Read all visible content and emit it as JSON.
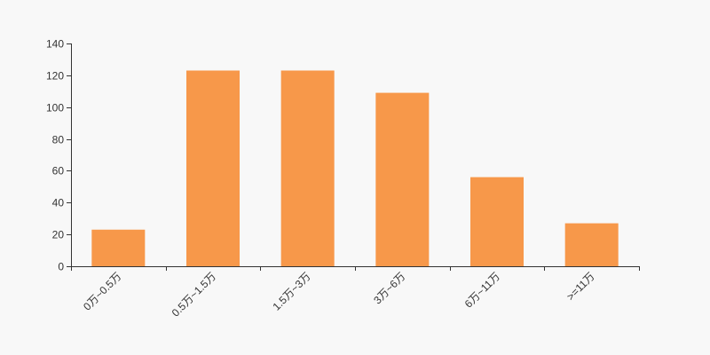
{
  "chart_data": {
    "type": "bar",
    "categories": [
      "0万~0.5万",
      "0.5万~1.5万",
      "1.5万~3万",
      "3万~6万",
      "6万~11万",
      ">=11万"
    ],
    "values": [
      23,
      123,
      123,
      109,
      56,
      27
    ],
    "title": "",
    "xlabel": "",
    "ylabel": "",
    "ylim": [
      0,
      140
    ],
    "yticks": [
      0,
      20,
      40,
      60,
      80,
      100,
      120,
      140
    ],
    "grid": false,
    "legend": "none",
    "bar_color": "#f7984a",
    "axis_color": "#333333",
    "background": "#f8f8f8",
    "xtick_rotation_deg": -45
  }
}
